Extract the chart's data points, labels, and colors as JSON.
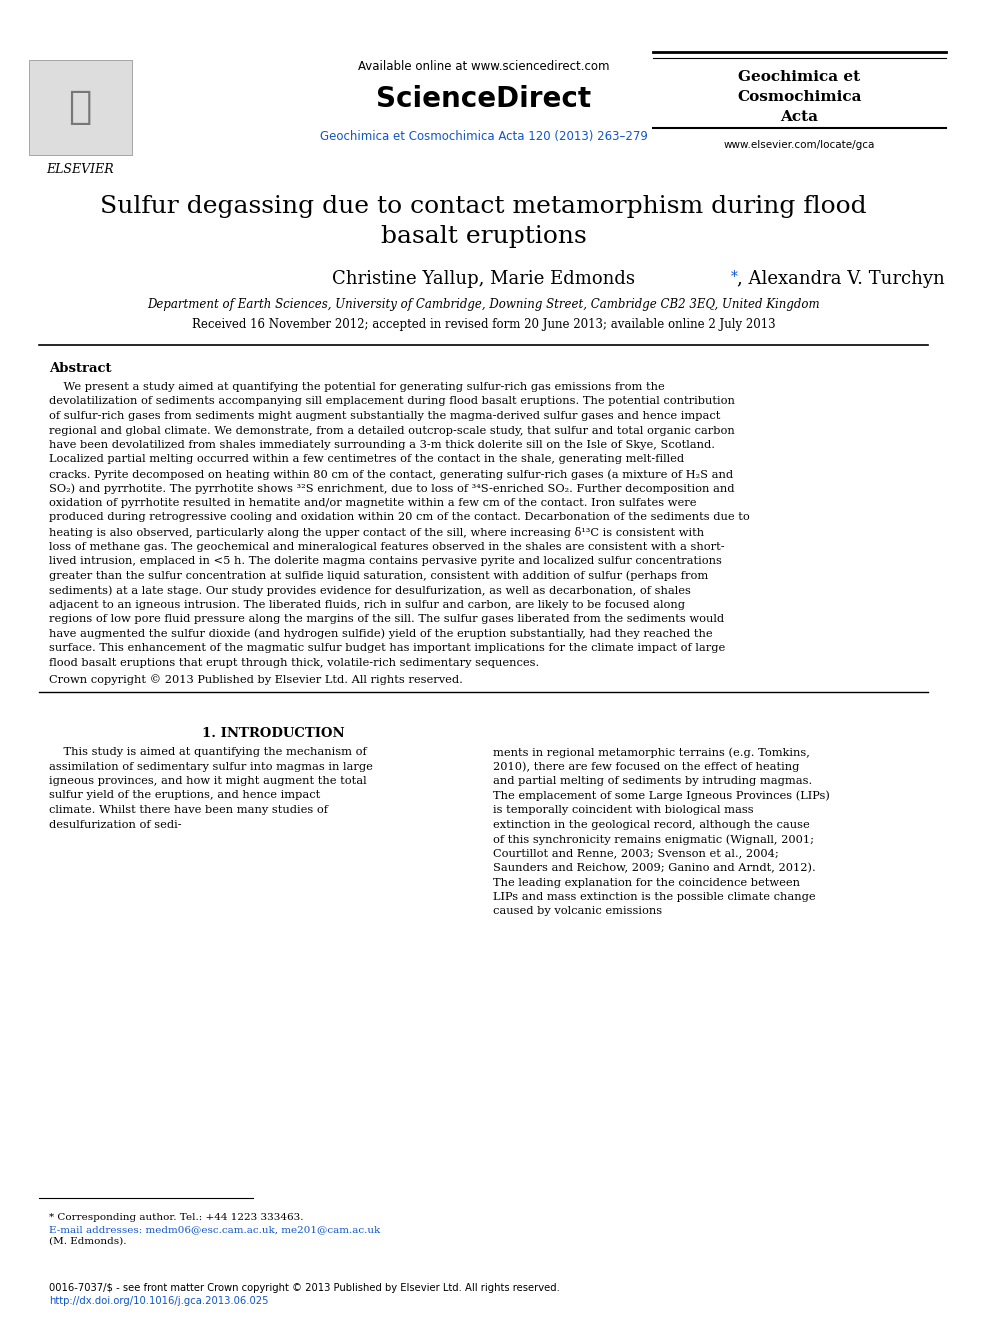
{
  "bg_color": "#ffffff",
  "header_available_text": "Available online at www.sciencedirect.com",
  "header_sciencedirect": "ScienceDirect",
  "header_journal_blue": "Geochimica et Cosmochimica Acta 120 (2013) 263–279",
  "header_journal_right_line1": "Geochimica et",
  "header_journal_right_line2": "Cosmochimica",
  "header_journal_right_line3": "Acta",
  "header_url": "www.elsevier.com/locate/gca",
  "elsevier_text": "ELSEVIER",
  "title_line1": "Sulfur degassing due to contact metamorphism during flood",
  "title_line2": "basalt eruptions",
  "authors": "Christine Yallup, Marie Edmondsⁿ, Alexandra V. Turchyn",
  "authors_star": "*",
  "affiliation": "Department of Earth Sciences, University of Cambridge, Downing Street, Cambridge CB2 3EQ, United Kingdom",
  "received": "Received 16 November 2012; accepted in revised form 20 June 2013; available online 2 July 2013",
  "abstract_label": "Abstract",
  "abstract_text": "We present a study aimed at quantifying the potential for generating sulfur-rich gas emissions from the devolatilization of sediments accompanying sill emplacement during flood basalt eruptions. The potential contribution of sulfur-rich gases from sediments might augment substantially the magma-derived sulfur gases and hence impact regional and global climate. We demonstrate, from a detailed outcrop-scale study, that sulfur and total organic carbon have been devolatilized from shales immediately surrounding a 3-m thick dolerite sill on the Isle of Skye, Scotland. Localized partial melting occurred within a few centimetres of the contact in the shale, generating melt-filled cracks. Pyrite decomposed on heating within 80 cm of the contact, generating sulfur-rich gases (a mixture of H₂S and SO₂) and pyrrhotite. The pyrrhotite shows ³²S enrichment, due to loss of ³⁴S-enriched SO₂. Further decomposition and oxidation of pyrrhotite resulted in hematite and/or magnetite within a few cm of the contact. Iron sulfates were produced during retrogressive cooling and oxidation within 20 cm of the contact. Decarbonation of the sediments due to heating is also observed, particularly along the upper contact of the sill, where increasing δ¹³C is consistent with loss of methane gas. The geochemical and mineralogical features observed in the shales are consistent with a short-lived intrusion, emplaced in <5 h. The dolerite magma contains pervasive pyrite and localized sulfur concentrations greater than the sulfur concentration at sulfide liquid saturation, consistent with addition of sulfur (perhaps from sediments) at a late stage. Our study provides evidence for desulfurization, as well as decarbonation, of shales adjacent to an igneous intrusion. The liberated fluids, rich in sulfur and carbon, are likely to be focused along regions of low pore fluid pressure along the margins of the sill. The sulfur gases liberated from the sediments would have augmented the sulfur dioxide (and hydrogen sulfide) yield of the eruption substantially, had they reached the surface. This enhancement of the magmatic sulfur budget has important implications for the climate impact of large flood basalt eruptions that erupt through thick, volatile-rich sedimentary sequences.",
  "copyright": "Crown copyright © 2013 Published by Elsevier Ltd. All rights reserved.",
  "section1_title": "1. INTRODUCTION",
  "section1_col1": "This study is aimed at quantifying the mechanism of assimilation of sedimentary sulfur into magmas in large igneous provinces, and how it might augment the total sulfur yield of the eruptions, and hence impact climate. Whilst there have been many studies of desulfurization of sedi-",
  "section1_col2": "ments in regional metamorphic terrains (e.g. Tomkins, 2010), there are few focused on the effect of heating and partial melting of sediments by intruding magmas.\n    The emplacement of some Large Igneous Provinces (LIPs) is temporally coincident with biological mass extinction in the geological record, although the cause of this synchronicity remains enigmatic (Wignall, 2001; Courtillot and Renne, 2003; Svenson et al., 2004; Saunders and Reichow, 2009; Ganino and Arndt, 2012). The leading explanation for the coincidence between LIPs and mass extinction is the possible climate change caused by volcanic emissions",
  "footnote_star": "* Corresponding author. Tel.: +44 1223 333463.",
  "footnote_email": "E-mail addresses: medm06@esc.cam.ac.uk, me201@cam.ac.uk",
  "footnote_M": "(M. Edmonds).",
  "footer_issn": "0016-7037/$ - see front matter Crown copyright © 2013 Published by Elsevier Ltd. All rights reserved.",
  "footer_doi": "http://dx.doi.org/10.1016/j.gca.2013.06.025",
  "blue_color": "#1155CC",
  "red_color": "#CC0000",
  "black_color": "#000000",
  "dark_blue": "#003399"
}
